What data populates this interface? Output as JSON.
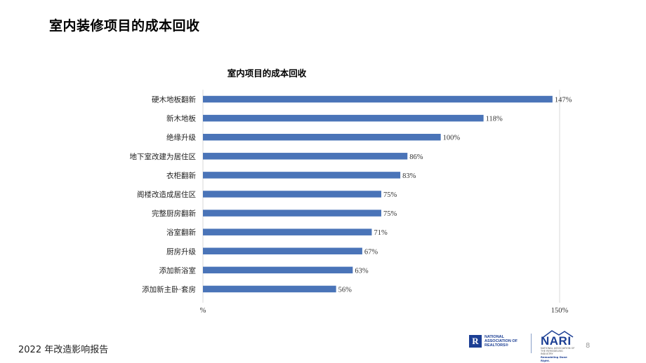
{
  "slide_title": "室内装修项目的成本回收",
  "footer": {
    "report": "2022 年改造影响报告",
    "page_number": "8"
  },
  "logos": {
    "realtors_mark": "R",
    "realtors_text": [
      "NATIONAL",
      "ASSOCIATION OF",
      "REALTORS®"
    ],
    "nari_name": "NARI",
    "nari_subtext": "NATIONAL ASSOCIATION OF THE REMODELING INDUSTRY",
    "nari_tagline": "Remodeling Done Right."
  },
  "colors": {
    "bar": "#4a74b8",
    "grid": "#d9d9d9",
    "brand_blue": "#1c3f94"
  },
  "chart_data": {
    "type": "bar",
    "orientation": "horizontal",
    "title": "室内项目的成本回收",
    "categories": [
      "硬木地板翻新",
      "新木地板",
      "绝缘升级",
      "地下室改建为居住区",
      "衣柜翻新",
      "阁楼改造成居住区",
      "完整厨房翻新",
      "浴室翻新",
      "厨房升级",
      "添加新浴室",
      "添加新主卧·套房"
    ],
    "values": [
      147,
      118,
      100,
      86,
      83,
      75,
      75,
      71,
      67,
      63,
      56
    ],
    "value_labels": [
      "147%",
      "118%",
      "100%",
      "86%",
      "83%",
      "75%",
      "75%",
      "71%",
      "67%",
      "63%",
      "56%"
    ],
    "xlim": [
      0,
      150
    ],
    "x_tick_labels": [
      "%",
      "150%"
    ],
    "xlabel": "",
    "ylabel": "",
    "legend": "none"
  }
}
